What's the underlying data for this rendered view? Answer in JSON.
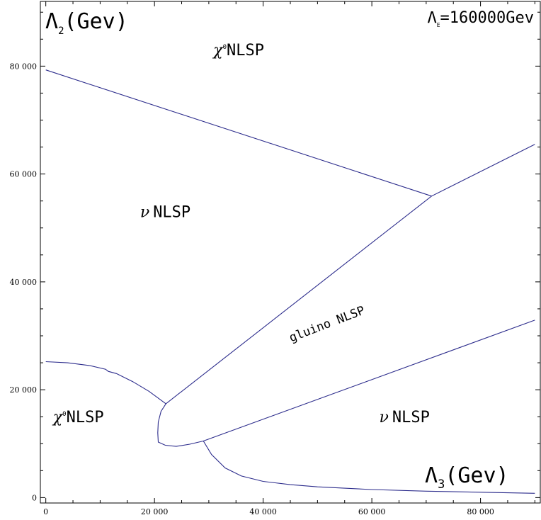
{
  "chart_data": {
    "type": "line",
    "title": "",
    "annotation": {
      "symbol": "Λ",
      "subscript": "E",
      "text": "=160000Gev"
    },
    "xlabel": {
      "symbol": "Λ",
      "subscript": "3",
      "unit": "(Gev)"
    },
    "ylabel": {
      "symbol": "Λ",
      "subscript": "2",
      "unit": "(Gev)"
    },
    "xlim": [
      -1000,
      91000
    ],
    "ylim": [
      -1000,
      92000
    ],
    "xticks": [
      0,
      20000,
      40000,
      60000,
      80000
    ],
    "xtick_labels": [
      "0",
      "20 000",
      "40 000",
      "60 000",
      "80 000"
    ],
    "yticks": [
      0,
      20000,
      40000,
      60000,
      80000
    ],
    "ytick_labels": [
      "0",
      "20 000",
      "40 000",
      "60 000",
      "80 000"
    ],
    "grid": false,
    "region_labels": [
      {
        "id": "chi-top",
        "symbol": "χ",
        "sup": "0",
        "text": "NLSP",
        "x": 35500,
        "y": 82000,
        "rotate": 0
      },
      {
        "id": "nu-left",
        "symbol": "ν",
        "sup": "",
        "text": "NLSP",
        "x": 22000,
        "y": 52000,
        "rotate": 0
      },
      {
        "id": "gluino",
        "symbol": "",
        "sup": "",
        "text": "gluino NLSP",
        "x": 52000,
        "y": 31500,
        "rotate": -21
      },
      {
        "id": "nu-right",
        "symbol": "ν",
        "sup": "",
        "text": "NLSP",
        "x": 66000,
        "y": 14000,
        "rotate": 0
      },
      {
        "id": "chi-bottom",
        "symbol": "χ",
        "sup": "0",
        "text": "NLSP",
        "x": 6000,
        "y": 14000,
        "rotate": 0
      }
    ],
    "series": [
      {
        "id": "boundary-chi-nu",
        "points": [
          [
            0,
            79300
          ],
          [
            71000,
            55900
          ]
        ]
      },
      {
        "id": "boundary-upper-diagonal",
        "points": [
          [
            22100,
            17400
          ],
          [
            71000,
            55900
          ],
          [
            90000,
            65500
          ]
        ]
      },
      {
        "id": "boundary-lower-diagonal",
        "points": [
          [
            29000,
            10500
          ],
          [
            90000,
            32900
          ]
        ]
      },
      {
        "id": "boundary-lower-arc",
        "points": [
          [
            0,
            25200
          ],
          [
            4000,
            25000
          ],
          [
            8000,
            24500
          ],
          [
            11000,
            23800
          ],
          [
            11500,
            23400
          ],
          [
            13000,
            23000
          ],
          [
            16000,
            21500
          ],
          [
            19000,
            19700
          ],
          [
            22100,
            17400
          ]
        ]
      },
      {
        "id": "boundary-nose",
        "points": [
          [
            22100,
            17400
          ],
          [
            21200,
            16000
          ],
          [
            20700,
            14000
          ],
          [
            20600,
            12000
          ],
          [
            20700,
            10300
          ],
          [
            22000,
            9700
          ],
          [
            24000,
            9500
          ],
          [
            26500,
            9900
          ],
          [
            29000,
            10500
          ]
        ]
      },
      {
        "id": "boundary-lower-tail",
        "points": [
          [
            29000,
            10500
          ],
          [
            30500,
            8000
          ],
          [
            33000,
            5500
          ],
          [
            36000,
            4000
          ],
          [
            40000,
            3000
          ],
          [
            45000,
            2400
          ],
          [
            50000,
            2000
          ],
          [
            60000,
            1500
          ],
          [
            70000,
            1200
          ],
          [
            80000,
            1000
          ],
          [
            90000,
            800
          ]
        ]
      }
    ]
  }
}
